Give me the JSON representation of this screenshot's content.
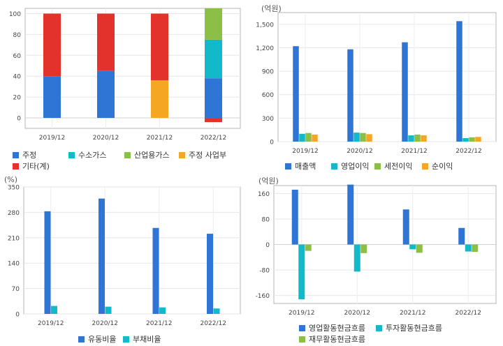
{
  "chart_data": [
    {
      "id": "chart-revenue-mix",
      "type": "bar",
      "stacked": true,
      "unit": "",
      "categories": [
        "2019/12",
        "2020/12",
        "2021/12",
        "2022/12"
      ],
      "ylim": [
        -10,
        105
      ],
      "yticks": [
        0,
        20,
        40,
        60,
        80,
        100
      ],
      "series": [
        {
          "name": "주정",
          "color": "#2e75d6",
          "values": [
            40,
            45,
            0,
            38
          ]
        },
        {
          "name": "수소가스",
          "color": "#12b9c9",
          "values": [
            0,
            0,
            0,
            37
          ]
        },
        {
          "name": "산업용가스",
          "color": "#8cbf45",
          "values": [
            0,
            0,
            0,
            30
          ]
        },
        {
          "name": "주정 사업부",
          "color": "#f5a623",
          "values": [
            0,
            0,
            36,
            0
          ]
        },
        {
          "name": "기타(계)",
          "color": "#e3322b",
          "values": [
            60,
            55,
            64,
            -4
          ]
        }
      ],
      "legend_rows": [
        [
          "주정",
          "수소가스",
          "산업용가스",
          "주정 사업부"
        ],
        [
          "기타(계)"
        ]
      ]
    },
    {
      "id": "chart-income",
      "type": "bar",
      "unit": "(억원)",
      "categories": [
        "2019/12",
        "2020/12",
        "2021/12",
        "2022/12"
      ],
      "ylim": [
        0,
        1650
      ],
      "yticks": [
        0,
        300,
        600,
        900,
        1200,
        1500
      ],
      "ytick_labels": [
        "0",
        "300",
        "600",
        "900",
        "1,200",
        "1,500"
      ],
      "series": [
        {
          "name": "매출액",
          "color": "#2e75d6",
          "values": [
            1220,
            1180,
            1270,
            1540
          ]
        },
        {
          "name": "영업이익",
          "color": "#12b9c9",
          "values": [
            100,
            115,
            80,
            45
          ]
        },
        {
          "name": "세전이익",
          "color": "#8cbf45",
          "values": [
            110,
            110,
            90,
            55
          ]
        },
        {
          "name": "순이익",
          "color": "#f5a623",
          "values": [
            90,
            95,
            80,
            60
          ]
        }
      ],
      "legend_rows": [
        [
          "매출액",
          "영업이익",
          "세전이익",
          "순이익"
        ]
      ]
    },
    {
      "id": "chart-ratios",
      "type": "bar",
      "unit": "(%)",
      "categories": [
        "2019/12",
        "2020/12",
        "2021/12",
        "2022/12"
      ],
      "ylim": [
        0,
        350
      ],
      "yticks": [
        0,
        70,
        140,
        210,
        280,
        350
      ],
      "series": [
        {
          "name": "유동비율",
          "color": "#2e75d6",
          "values": [
            283,
            318,
            237,
            221
          ]
        },
        {
          "name": "부채비율",
          "color": "#12b9c9",
          "values": [
            22,
            20,
            18,
            15
          ]
        }
      ],
      "legend_rows": [
        [
          "유동비율",
          "부채비율"
        ]
      ]
    },
    {
      "id": "chart-cashflow",
      "type": "bar",
      "unit": "(억원)",
      "categories": [
        "2019/12",
        "2020/12",
        "2021/12",
        "2022/12"
      ],
      "ylim": [
        -185,
        185
      ],
      "yticks": [
        -160,
        -80,
        0,
        80,
        160
      ],
      "series": [
        {
          "name": "영업활동현금흐름",
          "color": "#2e75d6",
          "values": [
            172,
            188,
            110,
            52
          ]
        },
        {
          "name": "투자활동현금흐름",
          "color": "#12b9c9",
          "values": [
            -172,
            -85,
            -15,
            -22
          ]
        },
        {
          "name": "재무활동현금흐름",
          "color": "#8cbf45",
          "values": [
            -20,
            -27,
            -26,
            -23
          ]
        }
      ],
      "legend_rows": [
        [
          "영업활동현금흐름",
          "투자활동현금흐름"
        ],
        [
          "재무활동현금흐름"
        ]
      ]
    }
  ]
}
